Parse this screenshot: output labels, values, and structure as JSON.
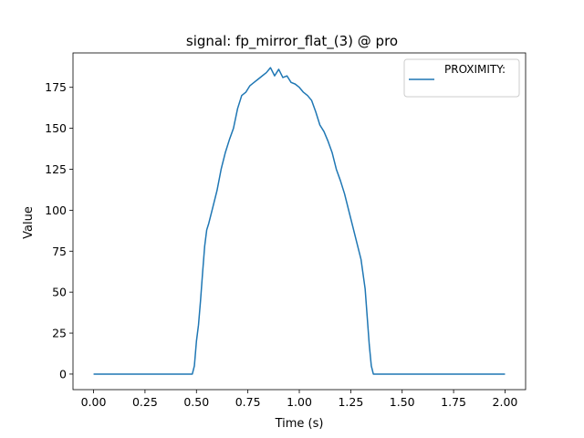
{
  "chart_data": {
    "type": "line",
    "title": "signal: fp_mirror_flat_(3) @ pro",
    "xlabel": "Time (s)",
    "ylabel": "Value",
    "xlim": [
      -0.1,
      2.1
    ],
    "ylim": [
      -9.5,
      196
    ],
    "x_ticks": [
      0.0,
      0.25,
      0.5,
      0.75,
      1.0,
      1.25,
      1.5,
      1.75,
      2.0
    ],
    "x_tick_labels": [
      "0.00",
      "0.25",
      "0.50",
      "0.75",
      "1.00",
      "1.25",
      "1.50",
      "1.75",
      "2.00"
    ],
    "y_ticks": [
      0,
      25,
      50,
      75,
      100,
      125,
      150,
      175
    ],
    "y_tick_labels": [
      "0",
      "25",
      "50",
      "75",
      "100",
      "125",
      "150",
      "175"
    ],
    "grid": false,
    "legend_position": "upper right",
    "series": [
      {
        "name": "PROXIMITY:",
        "color": "#1f77b4",
        "x": [
          0.0,
          0.1,
          0.2,
          0.3,
          0.4,
          0.48,
          0.49,
          0.5,
          0.51,
          0.52,
          0.53,
          0.54,
          0.55,
          0.56,
          0.58,
          0.6,
          0.62,
          0.64,
          0.66,
          0.68,
          0.7,
          0.72,
          0.74,
          0.76,
          0.78,
          0.8,
          0.82,
          0.84,
          0.86,
          0.88,
          0.9,
          0.92,
          0.94,
          0.96,
          0.98,
          1.0,
          1.02,
          1.04,
          1.06,
          1.08,
          1.1,
          1.12,
          1.14,
          1.16,
          1.18,
          1.2,
          1.22,
          1.24,
          1.26,
          1.28,
          1.3,
          1.32,
          1.33,
          1.34,
          1.35,
          1.36,
          1.4,
          1.5,
          1.6,
          1.7,
          1.8,
          1.9,
          2.0
        ],
        "y": [
          0,
          0,
          0,
          0,
          0,
          0,
          5,
          20,
          30,
          45,
          62,
          78,
          88,
          92,
          102,
          112,
          125,
          135,
          143,
          150,
          162,
          170,
          172,
          176,
          178,
          180,
          182,
          184,
          187,
          182,
          186,
          181,
          182,
          178,
          177,
          175,
          172,
          170,
          167,
          160,
          152,
          148,
          142,
          135,
          125,
          118,
          110,
          100,
          90,
          80,
          70,
          52,
          35,
          18,
          5,
          0,
          0,
          0,
          0,
          0,
          0,
          0,
          0
        ]
      }
    ]
  }
}
